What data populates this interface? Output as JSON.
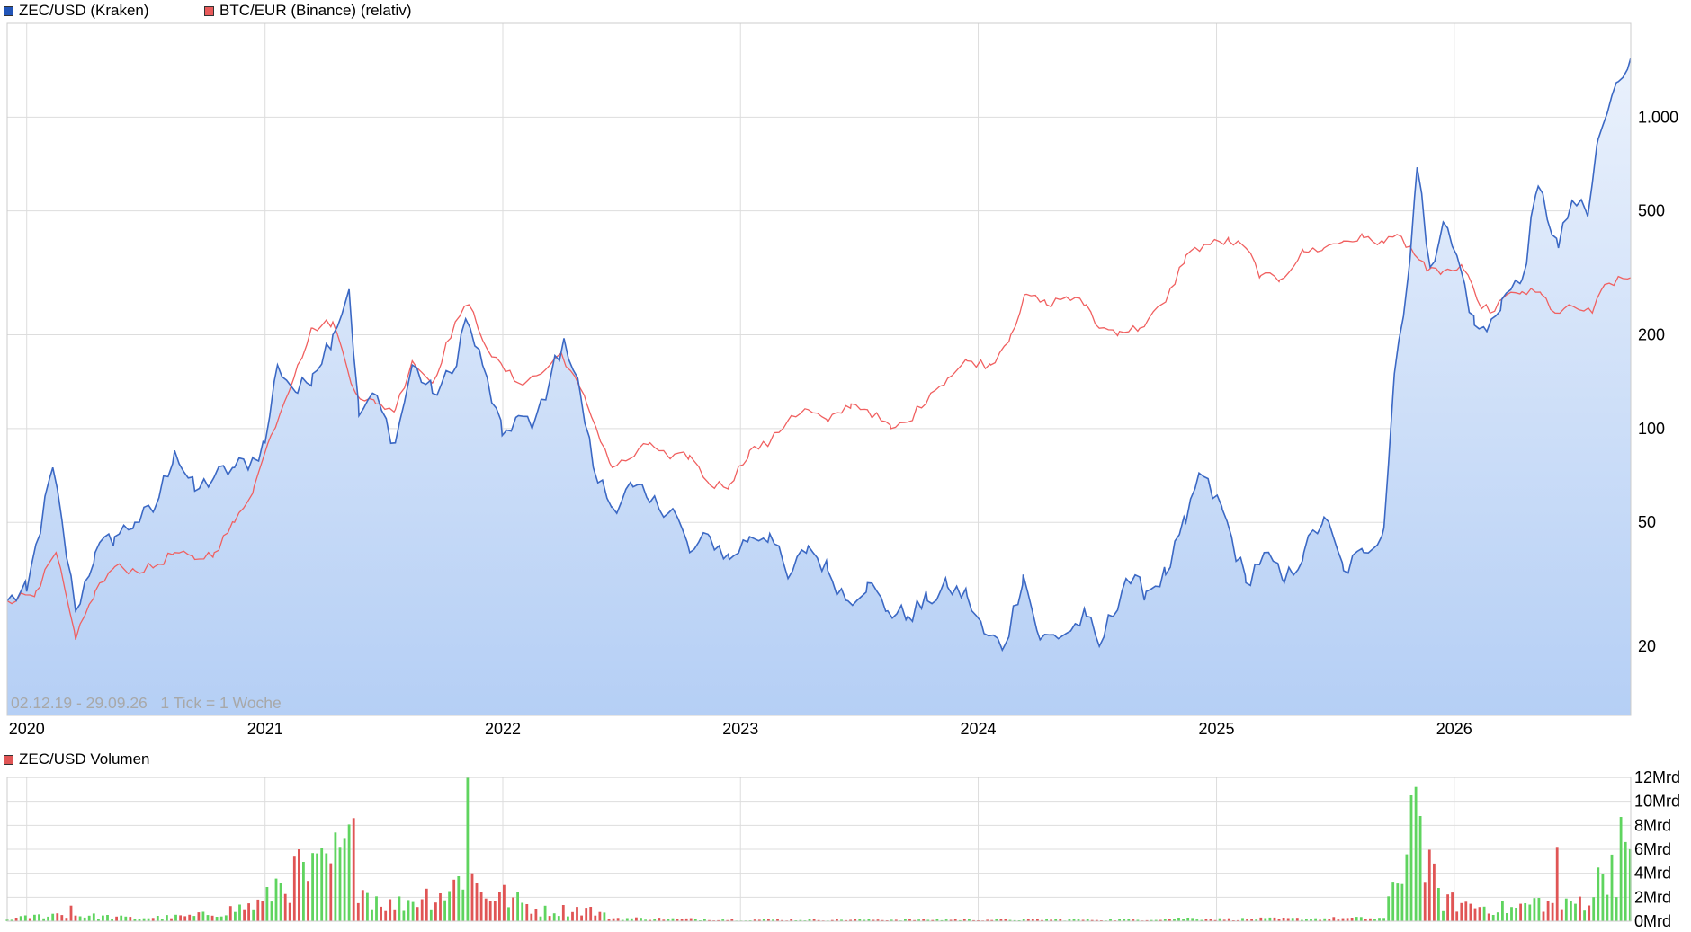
{
  "legend_top": [
    {
      "label": "ZEC/USD (Kraken)",
      "color": "#2255b8"
    },
    {
      "label": "BTC/EUR (Binance) (relativ)",
      "color": "#e85a5a"
    }
  ],
  "legend_bottom": {
    "label": "ZEC/USD Volumen",
    "color": "#e05555"
  },
  "range_note": "02.12.19 - 29.09.26   1 Tick = 1 Woche",
  "colors": {
    "zec_line": "#3b68c4",
    "btc_line": "#f06060",
    "area_top": "#eaf1fc",
    "area_bottom": "#b5cff5",
    "vol_up": "#5fd45f",
    "vol_down": "#e05555",
    "grid": "#dddddd"
  },
  "chart_data": [
    {
      "type": "line",
      "scale": "log",
      "x_tick_labels": [
        "2020",
        "2021",
        "2022",
        "2023",
        "2024",
        "2025",
        "2026"
      ],
      "y_tick_labels": [
        "20",
        "50",
        "100",
        "200",
        "500",
        "1.000"
      ],
      "y_ticks": [
        20,
        50,
        100,
        200,
        500,
        1000
      ],
      "ylim": [
        12,
        2000
      ],
      "x_range": [
        "2019-12-02",
        "2026-09-29"
      ],
      "series": [
        {
          "name": "ZEC/USD (Kraken)",
          "points": [
            [
              "2019-12-02",
              28
            ],
            [
              "2020-01-01",
              30
            ],
            [
              "2020-02-10",
              75
            ],
            [
              "2020-03-16",
              26
            ],
            [
              "2020-04-15",
              40
            ],
            [
              "2020-05-15",
              45
            ],
            [
              "2020-06-15",
              50
            ],
            [
              "2020-07-15",
              55
            ],
            [
              "2020-08-15",
              85
            ],
            [
              "2020-09-15",
              63
            ],
            [
              "2020-10-15",
              70
            ],
            [
              "2020-11-15",
              75
            ],
            [
              "2020-12-15",
              80
            ],
            [
              "2021-01-01",
              90
            ],
            [
              "2021-01-20",
              160
            ],
            [
              "2021-02-20",
              130
            ],
            [
              "2021-03-15",
              150
            ],
            [
              "2021-04-15",
              200
            ],
            [
              "2021-05-10",
              280
            ],
            [
              "2021-05-25",
              110
            ],
            [
              "2021-06-15",
              130
            ],
            [
              "2021-07-20",
              90
            ],
            [
              "2021-08-15",
              160
            ],
            [
              "2021-09-15",
              130
            ],
            [
              "2021-10-15",
              150
            ],
            [
              "2021-11-05",
              225
            ],
            [
              "2021-12-01",
              160
            ],
            [
              "2021-12-31",
              95
            ],
            [
              "2022-01-25",
              110
            ],
            [
              "2022-02-15",
              100
            ],
            [
              "2022-03-15",
              145
            ],
            [
              "2022-04-05",
              195
            ],
            [
              "2022-04-30",
              130
            ],
            [
              "2022-05-20",
              75
            ],
            [
              "2022-06-18",
              56
            ],
            [
              "2022-07-20",
              65
            ],
            [
              "2022-08-15",
              58
            ],
            [
              "2022-09-20",
              55
            ],
            [
              "2022-10-15",
              40
            ],
            [
              "2022-11-15",
              45
            ],
            [
              "2022-12-15",
              38
            ],
            [
              "2023-01-15",
              45
            ],
            [
              "2023-02-15",
              46
            ],
            [
              "2023-03-15",
              33
            ],
            [
              "2023-04-15",
              42
            ],
            [
              "2023-05-15",
              35
            ],
            [
              "2023-06-15",
              28
            ],
            [
              "2023-07-15",
              32
            ],
            [
              "2023-08-15",
              26
            ],
            [
              "2023-09-15",
              25
            ],
            [
              "2023-10-15",
              28
            ],
            [
              "2023-11-15",
              31
            ],
            [
              "2023-12-15",
              29
            ],
            [
              "2024-01-10",
              22
            ],
            [
              "2024-02-10",
              20
            ],
            [
              "2024-03-10",
              34
            ],
            [
              "2024-04-05",
              21
            ],
            [
              "2024-05-15",
              22
            ],
            [
              "2024-06-15",
              25
            ],
            [
              "2024-07-05",
              20
            ],
            [
              "2024-08-15",
              33
            ],
            [
              "2024-09-15",
              30
            ],
            [
              "2024-10-15",
              34
            ],
            [
              "2024-11-15",
              50
            ],
            [
              "2024-12-05",
              72
            ],
            [
              "2025-01-10",
              55
            ],
            [
              "2025-02-15",
              32
            ],
            [
              "2025-03-15",
              40
            ],
            [
              "2025-04-15",
              32
            ],
            [
              "2025-05-15",
              40
            ],
            [
              "2025-06-15",
              52
            ],
            [
              "2025-07-15",
              35
            ],
            [
              "2025-08-15",
              40
            ],
            [
              "2025-09-15",
              48
            ],
            [
              "2025-10-01",
              150
            ],
            [
              "2025-10-25",
              350
            ],
            [
              "2025-11-05",
              690
            ],
            [
              "2025-11-25",
              330
            ],
            [
              "2025-12-15",
              460
            ],
            [
              "2026-01-10",
              330
            ],
            [
              "2026-02-01",
              215
            ],
            [
              "2026-02-20",
              205
            ],
            [
              "2026-03-15",
              260
            ],
            [
              "2026-04-15",
              300
            ],
            [
              "2026-05-10",
              600
            ],
            [
              "2026-06-10",
              380
            ],
            [
              "2026-07-01",
              540
            ],
            [
              "2026-07-25",
              480
            ],
            [
              "2026-08-10",
              850
            ],
            [
              "2026-09-10",
              1300
            ],
            [
              "2026-09-29",
              1550
            ]
          ]
        },
        {
          "name": "BTC/EUR (Binance) (relativ)",
          "points": [
            [
              "2019-12-02",
              28
            ],
            [
              "2020-01-15",
              30
            ],
            [
              "2020-02-15",
              40
            ],
            [
              "2020-03-16",
              21
            ],
            [
              "2020-04-15",
              30
            ],
            [
              "2020-05-15",
              36
            ],
            [
              "2020-06-15",
              35
            ],
            [
              "2020-07-15",
              36
            ],
            [
              "2020-08-15",
              40
            ],
            [
              "2020-09-15",
              38
            ],
            [
              "2020-10-15",
              40
            ],
            [
              "2020-11-15",
              50
            ],
            [
              "2020-12-15",
              65
            ],
            [
              "2021-01-10",
              95
            ],
            [
              "2021-02-20",
              160
            ],
            [
              "2021-03-15",
              210
            ],
            [
              "2021-04-15",
              220
            ],
            [
              "2021-05-20",
              130
            ],
            [
              "2021-06-20",
              120
            ],
            [
              "2021-07-20",
              115
            ],
            [
              "2021-08-15",
              165
            ],
            [
              "2021-09-15",
              140
            ],
            [
              "2021-10-20",
              220
            ],
            [
              "2021-11-10",
              250
            ],
            [
              "2021-12-15",
              170
            ],
            [
              "2022-01-25",
              140
            ],
            [
              "2022-03-01",
              150
            ],
            [
              "2022-04-01",
              175
            ],
            [
              "2022-05-10",
              120
            ],
            [
              "2022-06-18",
              75
            ],
            [
              "2022-07-15",
              80
            ],
            [
              "2022-08-15",
              90
            ],
            [
              "2022-09-15",
              80
            ],
            [
              "2022-10-15",
              82
            ],
            [
              "2022-11-15",
              66
            ],
            [
              "2022-12-15",
              66
            ],
            [
              "2023-01-15",
              85
            ],
            [
              "2023-02-15",
              90
            ],
            [
              "2023-03-20",
              110
            ],
            [
              "2023-04-15",
              115
            ],
            [
              "2023-05-15",
              105
            ],
            [
              "2023-06-20",
              120
            ],
            [
              "2023-07-15",
              115
            ],
            [
              "2023-08-20",
              100
            ],
            [
              "2023-09-15",
              105
            ],
            [
              "2023-10-20",
              130
            ],
            [
              "2023-11-15",
              145
            ],
            [
              "2023-12-15",
              165
            ],
            [
              "2024-01-20",
              160
            ],
            [
              "2024-02-20",
              200
            ],
            [
              "2024-03-15",
              270
            ],
            [
              "2024-04-15",
              250
            ],
            [
              "2024-05-15",
              265
            ],
            [
              "2024-06-15",
              250
            ],
            [
              "2024-07-05",
              210
            ],
            [
              "2024-08-05",
              205
            ],
            [
              "2024-09-05",
              210
            ],
            [
              "2024-10-15",
              255
            ],
            [
              "2024-11-15",
              360
            ],
            [
              "2024-12-15",
              390
            ],
            [
              "2025-01-20",
              400
            ],
            [
              "2025-02-15",
              380
            ],
            [
              "2025-03-10",
              310
            ],
            [
              "2025-04-08",
              300
            ],
            [
              "2025-05-15",
              370
            ],
            [
              "2025-06-15",
              380
            ],
            [
              "2025-07-15",
              400
            ],
            [
              "2025-08-15",
              410
            ],
            [
              "2025-09-15",
              395
            ],
            [
              "2025-10-05",
              420
            ],
            [
              "2025-10-25",
              385
            ],
            [
              "2025-11-20",
              320
            ],
            [
              "2025-12-15",
              320
            ],
            [
              "2026-01-15",
              325
            ],
            [
              "2026-02-05",
              260
            ],
            [
              "2026-02-25",
              235
            ],
            [
              "2026-03-15",
              260
            ],
            [
              "2026-04-15",
              275
            ],
            [
              "2026-05-15",
              270
            ],
            [
              "2026-06-05",
              235
            ],
            [
              "2026-07-05",
              245
            ],
            [
              "2026-08-01",
              235
            ],
            [
              "2026-08-20",
              290
            ],
            [
              "2026-09-29",
              305
            ]
          ]
        }
      ]
    },
    {
      "type": "bar",
      "y_tick_labels": [
        "12Mrd",
        "10Mrd",
        "8Mrd",
        "6Mrd",
        "4Mrd",
        "2Mrd",
        "0Mrd"
      ],
      "y_ticks": [
        12,
        10,
        8,
        6,
        4,
        2,
        0
      ],
      "ylim": [
        0,
        12
      ],
      "unit": "Mrd",
      "series": [
        {
          "name": "ZEC/USD Volumen",
          "segments": [
            [
              "2019-12-02",
              0.2
            ],
            [
              "2020-02-15",
              0.7
            ],
            [
              "2020-06-15",
              0.3
            ],
            [
              "2020-09-15",
              0.5
            ],
            [
              "2020-11-01",
              1.0
            ],
            [
              "2020-12-31",
              1.8
            ],
            [
              "2021-01-20",
              3.8
            ],
            [
              "2021-03-15",
              4.5
            ],
            [
              "2021-05-10",
              6.5
            ],
            [
              "2021-06-01",
              3.0
            ],
            [
              "2021-07-15",
              1.5
            ],
            [
              "2021-09-01",
              2.5
            ],
            [
              "2021-10-15",
              3.0
            ],
            [
              "2021-11-05",
              5.5
            ],
            [
              "2021-11-25",
              3.0
            ],
            [
              "2022-01-01",
              2.5
            ],
            [
              "2022-03-01",
              1.0
            ],
            [
              "2022-05-10",
              1.2
            ],
            [
              "2022-06-18",
              0.3
            ],
            [
              "2022-12-31",
              0.15
            ],
            [
              "2024-09-01",
              0.15
            ],
            [
              "2024-11-20",
              0.3
            ],
            [
              "2025-01-01",
              0.2
            ],
            [
              "2025-09-15",
              0.3
            ],
            [
              "2025-10-08",
              4.5
            ],
            [
              "2025-11-01",
              10.5
            ],
            [
              "2025-11-20",
              5.0
            ],
            [
              "2025-12-15",
              2.0
            ],
            [
              "2026-02-01",
              1.5
            ],
            [
              "2026-04-01",
              1.2
            ],
            [
              "2026-05-15",
              2.0
            ],
            [
              "2026-06-10",
              1.2
            ],
            [
              "2026-08-01",
              2.5
            ],
            [
              "2026-08-25",
              6.0
            ],
            [
              "2026-09-29",
              5.0
            ]
          ],
          "spikes": [
            [
              "2021-05-17",
              8.6
            ],
            [
              "2021-11-08",
              12.0
            ],
            [
              "2025-10-27",
              10.5
            ],
            [
              "2025-11-03",
              11.2
            ],
            [
              "2026-06-08",
              6.2
            ],
            [
              "2026-09-14",
              8.7
            ],
            [
              "2020-03-09",
              1.3
            ],
            [
              "2021-02-22",
              6.0
            ],
            [
              "2021-04-19",
              7.4
            ]
          ]
        }
      ]
    }
  ]
}
